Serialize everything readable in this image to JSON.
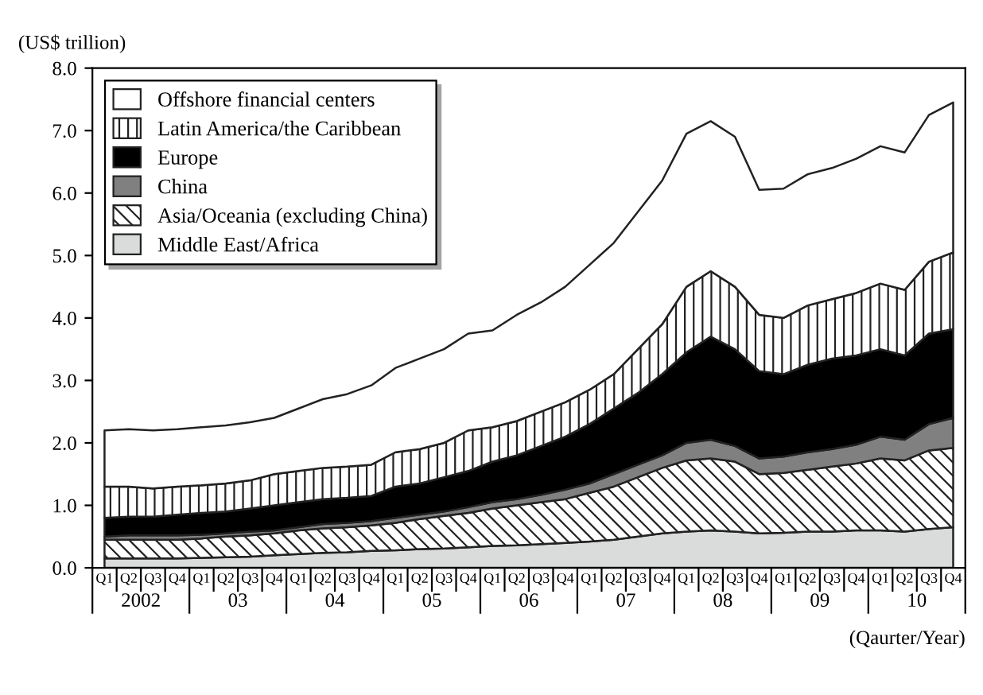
{
  "chart_data": {
    "type": "area",
    "stacked": true,
    "ylabel": "(US$ trillion)",
    "xlabel": "(Qaurter/Year)",
    "categories": [
      "Q1",
      "Q2",
      "Q3",
      "Q4",
      "Q1",
      "Q2",
      "Q3",
      "Q4",
      "Q1",
      "Q2",
      "Q3",
      "Q4",
      "Q1",
      "Q2",
      "Q3",
      "Q4",
      "Q1",
      "Q2",
      "Q3",
      "Q4",
      "Q1",
      "Q2",
      "Q3",
      "Q4",
      "Q1",
      "Q2",
      "Q3",
      "Q4",
      "Q1",
      "Q2",
      "Q3",
      "Q4",
      "Q1",
      "Q2",
      "Q3",
      "Q4"
    ],
    "annotations": [
      "2002",
      "03",
      "04",
      "05",
      "06",
      "07",
      "08",
      "09",
      "10"
    ],
    "ylim": [
      0,
      8
    ],
    "yticks": [
      {
        "value": 0,
        "label": "0.0"
      },
      {
        "value": 1,
        "label": "1.0"
      },
      {
        "value": 2,
        "label": "2.0"
      },
      {
        "value": 3,
        "label": "3.0"
      },
      {
        "value": 4,
        "label": "4.0"
      },
      {
        "value": 5,
        "label": "5.0"
      },
      {
        "value": 6,
        "label": "6.0"
      },
      {
        "value": 7,
        "label": "7.0"
      },
      {
        "value": 8,
        "label": "8.0"
      }
    ],
    "legend": "top left",
    "grid": false,
    "series": [
      {
        "name": "Middle East/Africa",
        "color": "#d9dcdb",
        "values": [
          0.15,
          0.15,
          0.15,
          0.15,
          0.16,
          0.17,
          0.18,
          0.2,
          0.22,
          0.24,
          0.25,
          0.27,
          0.28,
          0.3,
          0.31,
          0.33,
          0.35,
          0.36,
          0.38,
          0.4,
          0.42,
          0.45,
          0.5,
          0.55,
          0.58,
          0.6,
          0.58,
          0.55,
          0.56,
          0.58,
          0.58,
          0.6,
          0.6,
          0.58,
          0.62,
          0.65
        ]
      },
      {
        "name": "Asia/Oceania (excluding China)",
        "color": "#222222",
        "values": [
          0.3,
          0.3,
          0.3,
          0.3,
          0.31,
          0.33,
          0.34,
          0.35,
          0.38,
          0.39,
          0.4,
          0.41,
          0.44,
          0.48,
          0.52,
          0.55,
          0.6,
          0.64,
          0.67,
          0.7,
          0.78,
          0.85,
          0.95,
          1.05,
          1.14,
          1.15,
          1.12,
          0.95,
          0.96,
          0.99,
          1.04,
          1.07,
          1.15,
          1.14,
          1.26,
          1.27
        ]
      },
      {
        "name": "China",
        "color": "#808080",
        "values": [
          0.05,
          0.07,
          0.07,
          0.07,
          0.06,
          0.05,
          0.06,
          0.05,
          0.05,
          0.07,
          0.07,
          0.07,
          0.08,
          0.07,
          0.07,
          0.09,
          0.1,
          0.1,
          0.12,
          0.15,
          0.15,
          0.2,
          0.2,
          0.2,
          0.28,
          0.3,
          0.25,
          0.25,
          0.26,
          0.28,
          0.28,
          0.3,
          0.35,
          0.33,
          0.42,
          0.48
        ]
      },
      {
        "name": "Europe",
        "color": "#000000",
        "values": [
          0.3,
          0.3,
          0.3,
          0.33,
          0.35,
          0.35,
          0.37,
          0.4,
          0.4,
          0.4,
          0.4,
          0.4,
          0.5,
          0.5,
          0.55,
          0.58,
          0.65,
          0.7,
          0.78,
          0.85,
          0.95,
          1.05,
          1.15,
          1.3,
          1.45,
          1.65,
          1.55,
          1.4,
          1.32,
          1.4,
          1.45,
          1.43,
          1.4,
          1.35,
          1.45,
          1.42
        ]
      },
      {
        "name": "Latin America/the Caribbean",
        "color": "#222222",
        "values": [
          0.5,
          0.48,
          0.45,
          0.45,
          0.44,
          0.45,
          0.45,
          0.5,
          0.5,
          0.5,
          0.5,
          0.5,
          0.55,
          0.55,
          0.55,
          0.65,
          0.55,
          0.55,
          0.55,
          0.55,
          0.55,
          0.55,
          0.7,
          0.8,
          1.05,
          1.05,
          1.0,
          0.9,
          0.9,
          0.95,
          0.95,
          1.0,
          1.05,
          1.05,
          1.15,
          1.23
        ]
      },
      {
        "name": "Offshore financial centers",
        "color": "#ffffff",
        "values": [
          0.9,
          0.92,
          0.93,
          0.92,
          0.93,
          0.93,
          0.93,
          0.9,
          1.0,
          1.1,
          1.16,
          1.27,
          1.35,
          1.45,
          1.5,
          1.55,
          1.55,
          1.7,
          1.75,
          1.85,
          2.0,
          2.1,
          2.2,
          2.3,
          2.45,
          2.4,
          2.4,
          2.0,
          2.07,
          2.1,
          2.1,
          2.15,
          2.2,
          2.2,
          2.35,
          2.4
        ]
      }
    ]
  }
}
